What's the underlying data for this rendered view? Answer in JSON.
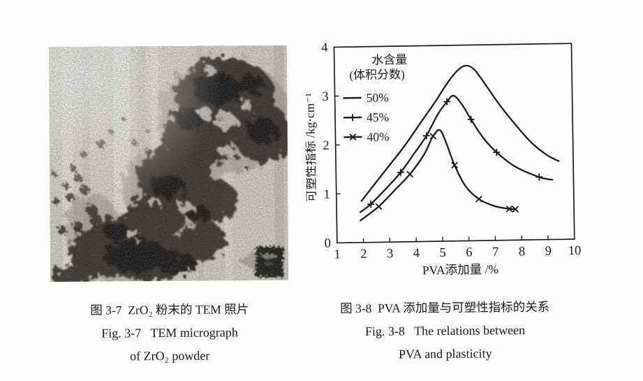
{
  "page": {
    "background": "#fdfdfb",
    "ink_color": "#1b1b1b"
  },
  "figures": {
    "tem": {
      "caption_cn": "图 3-7  ZrO₂ 粉末的 TEM 照片",
      "caption_en_line1": "Fig. 3-7   TEM micrograph",
      "caption_en_line2": "of ZrO₂ powder"
    },
    "chart": {
      "caption_cn": "图 3-8  PVA 添加量与可塑性指标的关系",
      "caption_en_line1": "Fig. 3-8   The relations between",
      "caption_en_line2": "PVA and plasticity"
    }
  },
  "chart_data": {
    "type": "line",
    "title": "",
    "xlabel": "PVA添加量 /%",
    "ylabel": "可塑性指标 /kg·cm⁻¹",
    "xlim": [
      1,
      10
    ],
    "ylim": [
      0,
      4
    ],
    "x_ticks": [
      1,
      2,
      3,
      4,
      5,
      6,
      7,
      8,
      9,
      10
    ],
    "y_ticks": [
      0,
      1,
      2,
      3,
      4
    ],
    "grid": false,
    "frame": true,
    "ink_color": "#1c1c1c",
    "legend": {
      "title": "水含量",
      "subtitle": "(体积分数)",
      "position": "upper-left-inside"
    },
    "series": [
      {
        "name": "50%",
        "marker": "none",
        "x": [
          1.95,
          2.4,
          3.0,
          3.6,
          4.2,
          4.8,
          5.3,
          5.7,
          6.0,
          6.3,
          6.7,
          7.2,
          7.8,
          8.4,
          9.0,
          9.45
        ],
        "y": [
          0.85,
          1.15,
          1.55,
          1.95,
          2.4,
          2.85,
          3.25,
          3.5,
          3.58,
          3.5,
          3.2,
          2.8,
          2.38,
          2.0,
          1.73,
          1.6
        ],
        "marker_points": []
      },
      {
        "name": "45%",
        "marker": "plus",
        "x": [
          1.9,
          2.3,
          2.9,
          3.45,
          4.0,
          4.45,
          4.9,
          5.25,
          5.5,
          5.8,
          6.15,
          6.6,
          7.1,
          7.8,
          8.7,
          9.2
        ],
        "y": [
          0.62,
          0.78,
          1.1,
          1.42,
          1.82,
          2.16,
          2.6,
          2.85,
          2.97,
          2.8,
          2.48,
          2.1,
          1.8,
          1.5,
          1.28,
          1.22
        ],
        "marker_points": [
          [
            2.3,
            0.78
          ],
          [
            3.45,
            1.42
          ],
          [
            4.45,
            2.16
          ],
          [
            5.25,
            2.85
          ],
          [
            6.15,
            2.48
          ],
          [
            7.1,
            1.8
          ],
          [
            8.7,
            1.28
          ]
        ]
      },
      {
        "name": "40%",
        "marker": "x",
        "x": [
          1.9,
          2.6,
          3.2,
          3.8,
          4.35,
          4.7,
          4.97,
          5.2,
          5.5,
          5.9,
          6.4,
          7.0,
          7.55,
          7.8
        ],
        "y": [
          0.45,
          0.73,
          1.05,
          1.38,
          1.78,
          2.15,
          2.27,
          2.0,
          1.55,
          1.12,
          0.85,
          0.7,
          0.64,
          0.63
        ],
        "marker_points": [
          [
            2.6,
            0.73
          ],
          [
            3.8,
            1.38
          ],
          [
            4.7,
            2.15
          ],
          [
            5.5,
            1.55
          ],
          [
            6.4,
            0.85
          ],
          [
            7.55,
            0.64
          ],
          [
            7.78,
            0.63
          ]
        ]
      }
    ]
  }
}
